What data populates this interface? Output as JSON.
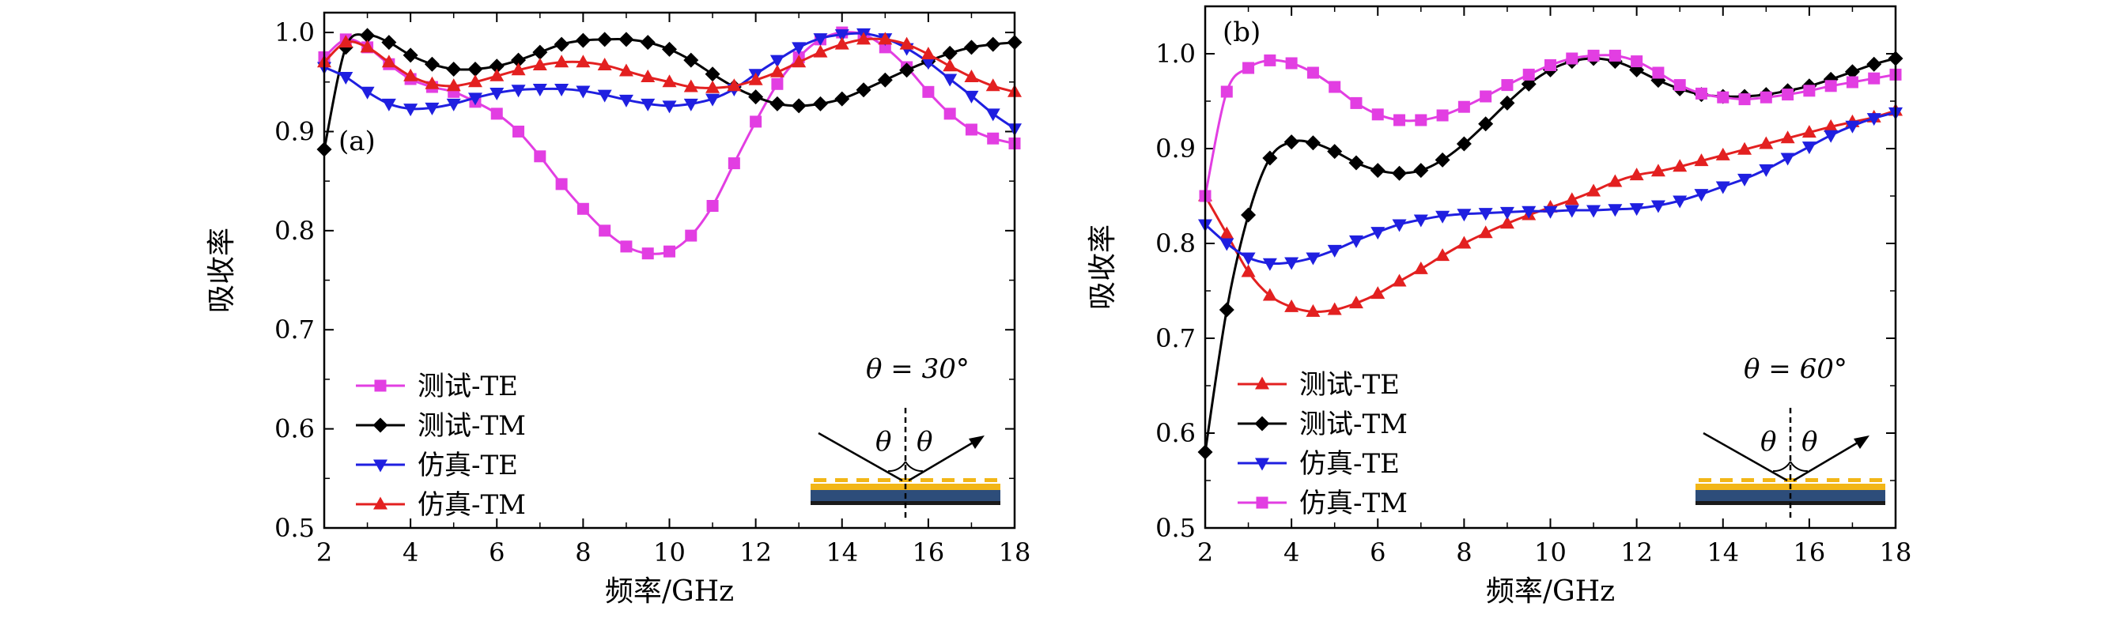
{
  "chart_data": [
    {
      "type": "line",
      "panel_label": "(a)",
      "xlabel": "频率/GHz",
      "ylabel": "吸收率",
      "xlim": [
        2,
        18
      ],
      "ylim": [
        0.5,
        1.02
      ],
      "xticks": [
        2,
        4,
        6,
        8,
        10,
        12,
        14,
        16,
        18
      ],
      "yticks": [
        0.5,
        0.6,
        0.7,
        0.8,
        0.9,
        1.0
      ],
      "xtick_labels": [
        "2",
        "4",
        "6",
        "8",
        "10",
        "12",
        "14",
        "16",
        "18"
      ],
      "ytick_labels": [
        "0.5",
        "0.6",
        "0.7",
        "0.8",
        "0.9",
        "1.0"
      ],
      "annotation": "θ = 30°",
      "inset_labels": [
        "θ",
        "θ"
      ],
      "legend_position": "lower-left",
      "series": [
        {
          "name": "测试-TE",
          "color": "#e23ee2",
          "marker": "square",
          "x": [
            2,
            2.5,
            3,
            3.5,
            4,
            4.5,
            5,
            5.5,
            6,
            6.5,
            7,
            7.5,
            8,
            8.5,
            9,
            9.5,
            10,
            10.5,
            11,
            11.5,
            12,
            12.5,
            13,
            13.5,
            14,
            14.5,
            15,
            15.5,
            16,
            16.5,
            17,
            17.5,
            18
          ],
          "y": [
            0.975,
            0.993,
            0.985,
            0.968,
            0.953,
            0.945,
            0.94,
            0.93,
            0.918,
            0.9,
            0.875,
            0.847,
            0.822,
            0.8,
            0.784,
            0.777,
            0.779,
            0.795,
            0.825,
            0.868,
            0.91,
            0.948,
            0.975,
            0.993,
            1.0,
            0.998,
            0.985,
            0.965,
            0.94,
            0.918,
            0.902,
            0.893,
            0.888
          ]
        },
        {
          "name": "测试-TM",
          "color": "#000000",
          "marker": "diamond",
          "x": [
            2,
            2.5,
            3,
            3.5,
            4,
            4.5,
            5,
            5.5,
            6,
            6.5,
            7,
            7.5,
            8,
            8.5,
            9,
            9.5,
            10,
            10.5,
            11,
            11.5,
            12,
            12.5,
            13,
            13.5,
            14,
            14.5,
            15,
            15.5,
            16,
            16.5,
            17,
            17.5,
            18
          ],
          "y": [
            0.882,
            0.985,
            0.997,
            0.99,
            0.977,
            0.968,
            0.963,
            0.963,
            0.966,
            0.972,
            0.98,
            0.988,
            0.992,
            0.993,
            0.993,
            0.99,
            0.983,
            0.972,
            0.958,
            0.945,
            0.935,
            0.928,
            0.926,
            0.928,
            0.933,
            0.942,
            0.952,
            0.962,
            0.971,
            0.979,
            0.985,
            0.988,
            0.99
          ]
        },
        {
          "name": "仿真-TE",
          "color": "#1f1fe0",
          "marker": "triangle-down",
          "x": [
            2,
            2.5,
            3,
            3.5,
            4,
            4.5,
            5,
            5.5,
            6,
            6.5,
            7,
            7.5,
            8,
            8.5,
            9,
            9.5,
            10,
            10.5,
            11,
            11.5,
            12,
            12.5,
            13,
            13.5,
            14,
            14.5,
            15,
            15.5,
            16,
            16.5,
            17,
            17.5,
            18
          ],
          "y": [
            0.965,
            0.955,
            0.94,
            0.928,
            0.923,
            0.924,
            0.928,
            0.934,
            0.939,
            0.942,
            0.943,
            0.943,
            0.941,
            0.937,
            0.932,
            0.928,
            0.926,
            0.928,
            0.933,
            0.943,
            0.958,
            0.972,
            0.985,
            0.994,
            0.998,
            0.999,
            0.994,
            0.984,
            0.97,
            0.953,
            0.936,
            0.918,
            0.903
          ]
        },
        {
          "name": "仿真-TM",
          "color": "#e32020",
          "marker": "triangle-up",
          "x": [
            2,
            2.5,
            3,
            3.5,
            4,
            4.5,
            5,
            5.5,
            6,
            6.5,
            7,
            7.5,
            8,
            8.5,
            9,
            9.5,
            10,
            10.5,
            11,
            11.5,
            12,
            12.5,
            13,
            13.5,
            14,
            14.5,
            15,
            15.5,
            16,
            16.5,
            17,
            17.5,
            18
          ],
          "y": [
            0.97,
            0.99,
            0.985,
            0.97,
            0.956,
            0.948,
            0.946,
            0.95,
            0.956,
            0.962,
            0.967,
            0.97,
            0.97,
            0.967,
            0.961,
            0.955,
            0.95,
            0.945,
            0.944,
            0.946,
            0.952,
            0.96,
            0.97,
            0.98,
            0.988,
            0.993,
            0.993,
            0.988,
            0.978,
            0.966,
            0.955,
            0.946,
            0.94
          ]
        }
      ]
    },
    {
      "type": "line",
      "panel_label": "(b)",
      "xlabel": "频率/GHz",
      "ylabel": "吸收率",
      "xlim": [
        2,
        18
      ],
      "ylim": [
        0.5,
        1.05
      ],
      "xticks": [
        2,
        4,
        6,
        8,
        10,
        12,
        14,
        16,
        18
      ],
      "yticks": [
        0.5,
        0.6,
        0.7,
        0.8,
        0.9,
        1.0
      ],
      "xtick_labels": [
        "2",
        "4",
        "6",
        "8",
        "10",
        "12",
        "14",
        "16",
        "18"
      ],
      "ytick_labels": [
        "0.5",
        "0.6",
        "0.7",
        "0.8",
        "0.9",
        "1.0"
      ],
      "annotation": "θ = 60°",
      "inset_labels": [
        "θ",
        "θ"
      ],
      "legend_position": "lower-left",
      "series": [
        {
          "name": "测试-TE",
          "color": "#e32020",
          "marker": "triangle-up",
          "x": [
            2,
            2.5,
            3,
            3.5,
            4,
            4.5,
            5,
            5.5,
            6,
            6.5,
            7,
            7.5,
            8,
            8.5,
            9,
            9.5,
            10,
            10.5,
            11,
            11.5,
            12,
            12.5,
            13,
            13.5,
            14,
            14.5,
            15,
            15.5,
            16,
            16.5,
            17,
            17.5,
            18
          ],
          "y": [
            0.85,
            0.81,
            0.77,
            0.745,
            0.733,
            0.728,
            0.73,
            0.737,
            0.747,
            0.76,
            0.773,
            0.787,
            0.8,
            0.811,
            0.821,
            0.83,
            0.838,
            0.846,
            0.855,
            0.865,
            0.872,
            0.876,
            0.881,
            0.887,
            0.893,
            0.899,
            0.905,
            0.911,
            0.917,
            0.923,
            0.928,
            0.933,
            0.94
          ]
        },
        {
          "name": "测试-TM",
          "color": "#000000",
          "marker": "diamond",
          "x": [
            2,
            2.5,
            3,
            3.5,
            4,
            4.5,
            5,
            5.5,
            6,
            6.5,
            7,
            7.5,
            8,
            8.5,
            9,
            9.5,
            10,
            10.5,
            11,
            11.5,
            12,
            12.5,
            13,
            13.5,
            14,
            14.5,
            15,
            15.5,
            16,
            16.5,
            17,
            17.5,
            18
          ],
          "y": [
            0.58,
            0.73,
            0.83,
            0.89,
            0.907,
            0.906,
            0.897,
            0.885,
            0.877,
            0.874,
            0.877,
            0.888,
            0.905,
            0.926,
            0.948,
            0.968,
            0.983,
            0.992,
            0.995,
            0.992,
            0.983,
            0.972,
            0.963,
            0.957,
            0.955,
            0.955,
            0.957,
            0.961,
            0.966,
            0.973,
            0.981,
            0.989,
            0.995
          ]
        },
        {
          "name": "仿真-TE",
          "color": "#1f1fe0",
          "marker": "triangle-down",
          "x": [
            2,
            2.5,
            3,
            3.5,
            4,
            4.5,
            5,
            5.5,
            6,
            6.5,
            7,
            7.5,
            8,
            8.5,
            9,
            9.5,
            10,
            10.5,
            11,
            11.5,
            12,
            12.5,
            13,
            13.5,
            14,
            14.5,
            15,
            15.5,
            16,
            16.5,
            17,
            17.5,
            18
          ],
          "y": [
            0.82,
            0.8,
            0.785,
            0.779,
            0.78,
            0.785,
            0.793,
            0.803,
            0.812,
            0.82,
            0.825,
            0.829,
            0.831,
            0.832,
            0.833,
            0.834,
            0.834,
            0.835,
            0.835,
            0.836,
            0.837,
            0.84,
            0.845,
            0.852,
            0.86,
            0.868,
            0.878,
            0.89,
            0.902,
            0.914,
            0.924,
            0.932,
            0.938
          ]
        },
        {
          "name": "仿真-TM",
          "color": "#e23ee2",
          "marker": "square",
          "x": [
            2,
            2.5,
            3,
            3.5,
            4,
            4.5,
            5,
            5.5,
            6,
            6.5,
            7,
            7.5,
            8,
            8.5,
            9,
            9.5,
            10,
            10.5,
            11,
            11.5,
            12,
            12.5,
            13,
            13.5,
            14,
            14.5,
            15,
            15.5,
            16,
            16.5,
            17,
            17.5,
            18
          ],
          "y": [
            0.85,
            0.96,
            0.985,
            0.993,
            0.99,
            0.98,
            0.965,
            0.948,
            0.936,
            0.93,
            0.93,
            0.935,
            0.944,
            0.955,
            0.967,
            0.978,
            0.988,
            0.995,
            0.998,
            0.998,
            0.992,
            0.98,
            0.967,
            0.958,
            0.954,
            0.952,
            0.954,
            0.957,
            0.961,
            0.966,
            0.97,
            0.974,
            0.978
          ]
        }
      ]
    }
  ]
}
